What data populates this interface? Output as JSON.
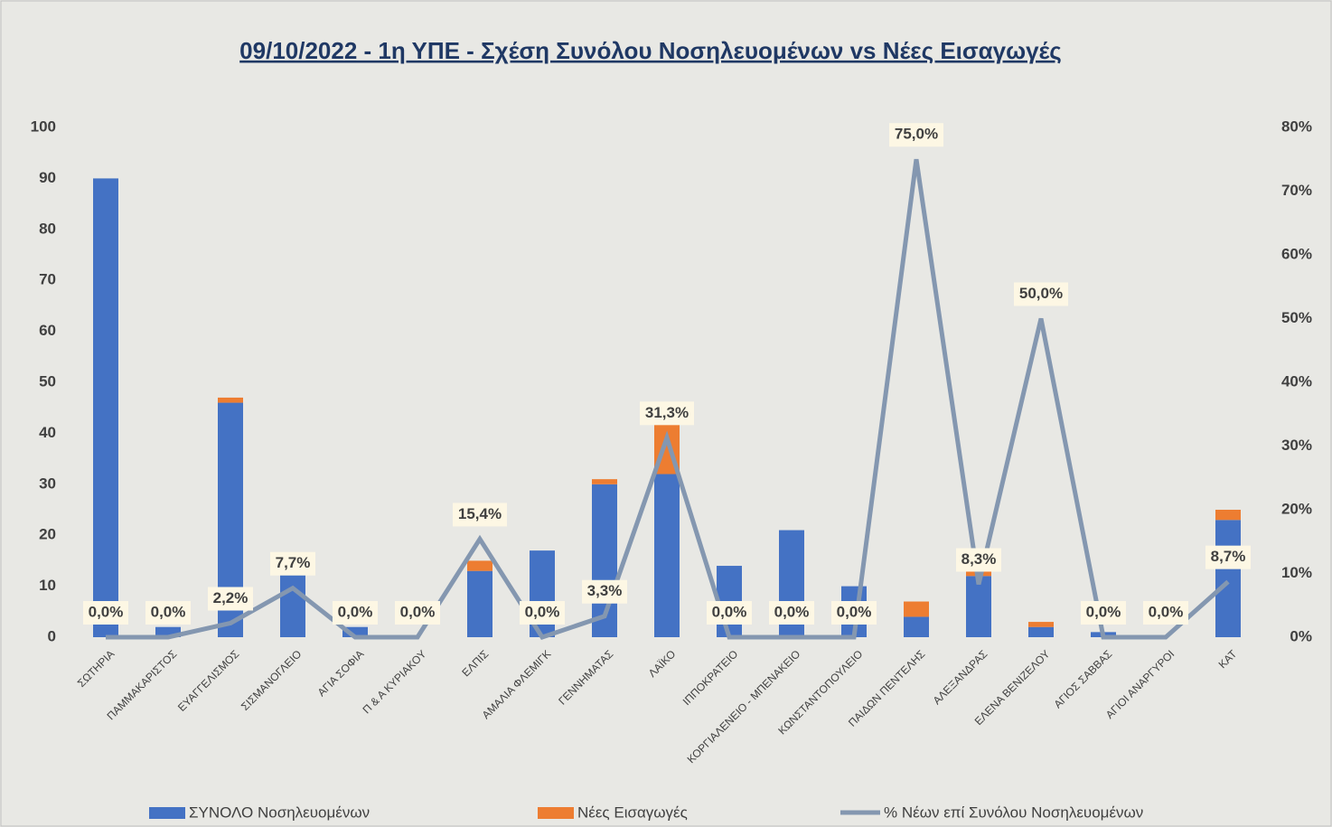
{
  "chart_data": {
    "type": "bar-line",
    "title": "09/10/2022 - 1η ΥΠΕ - Σχέση Συνόλου Νοσηλευομένων vs Νέες Εισαγωγές",
    "categories": [
      "ΣΩΤΗΡΙΑ",
      "ΠΑΜΜΑΚΑΡΙΣΤΟΣ",
      "ΕΥΑΓΓΕΛΙΣΜΟΣ",
      "ΣΙΣΜΑΝΟΓΛΕΙΟ",
      "ΑΓΙΑ ΣΟΦΙΑ",
      "Π & Α ΚΥΡΙΑΚΟΥ",
      "ΕΛΠΙΣ",
      "ΑΜΑΛΙΑ ΦΛΕΜΙΓΚ",
      "ΓΕΝΝΗΜΑΤΑΣ",
      "ΛΑΪΚΟ",
      "ΙΠΠΟΚΡΑΤΕΙΟ",
      "ΚΟΡΓΙΑΛΕΝΕΙΟ - ΜΠΕΝΑΚΕΙΟ",
      "ΚΩΝΣΤΑΝΤΟΠΟΥΛΕΙΟ",
      "ΠΑΙΔΩΝ ΠΕΝΤΕΛΗΣ",
      "ΑΛΕΞΑΝΔΡΑΣ",
      "ΕΛΕΝΑ ΒΕΝΙΖΕΛΟΥ",
      "ΑΓΙΟΣ ΣΑΒΒΑΣ",
      "ΑΓΙΟΙ ΑΝΑΡΓΥΡΟΙ",
      "ΚΑΤ"
    ],
    "series": [
      {
        "name": "ΣΥΝΟΛΟ Νοσηλευομένων",
        "color": "#4472c4",
        "kind": "bar",
        "values": [
          90,
          2,
          46,
          13,
          2,
          0,
          13,
          17,
          30,
          32,
          14,
          21,
          10,
          4,
          12,
          2,
          1,
          0,
          23
        ]
      },
      {
        "name": "Νέες Εισαγωγές",
        "color": "#ed7d31",
        "kind": "bar",
        "values": [
          0,
          0,
          1,
          1,
          0,
          0,
          2,
          0,
          1,
          10,
          0,
          0,
          0,
          3,
          1,
          1,
          0,
          0,
          2
        ]
      },
      {
        "name": "% Νέων επί Συνόλου Νοσηλευομένων",
        "color": "#8497b0",
        "kind": "line",
        "axis": "y2",
        "values": [
          0,
          0,
          2.2,
          7.7,
          0,
          0,
          15.4,
          0,
          3.3,
          31.3,
          0,
          0,
          0,
          75,
          8.3,
          50,
          0,
          0,
          8.7
        ],
        "value_labels": [
          "0,0%",
          "0,0%",
          "2,2%",
          "7,7%",
          "0,0%",
          "0,0%",
          "15,4%",
          "0,0%",
          "3,3%",
          "31,3%",
          "0,0%",
          "0,0%",
          "0,0%",
          "75,0%",
          "8,3%",
          "50,0%",
          "0,0%",
          "0,0%",
          "8,7%"
        ]
      }
    ],
    "ylim": [
      0,
      100
    ],
    "yticks": [
      0,
      10,
      20,
      30,
      40,
      50,
      60,
      70,
      80,
      90,
      100
    ],
    "y2lim": [
      0,
      80
    ],
    "y2ticks": [
      {
        "value": 0,
        "label": "0%"
      },
      {
        "value": 10,
        "label": "10%"
      },
      {
        "value": 20,
        "label": "20%"
      },
      {
        "value": 30,
        "label": "30%"
      },
      {
        "value": 40,
        "label": "40%"
      },
      {
        "value": 50,
        "label": "50%"
      },
      {
        "value": 60,
        "label": "60%"
      },
      {
        "value": 70,
        "label": "70%"
      },
      {
        "value": 80,
        "label": "80%"
      }
    ],
    "legend": "bottom"
  }
}
